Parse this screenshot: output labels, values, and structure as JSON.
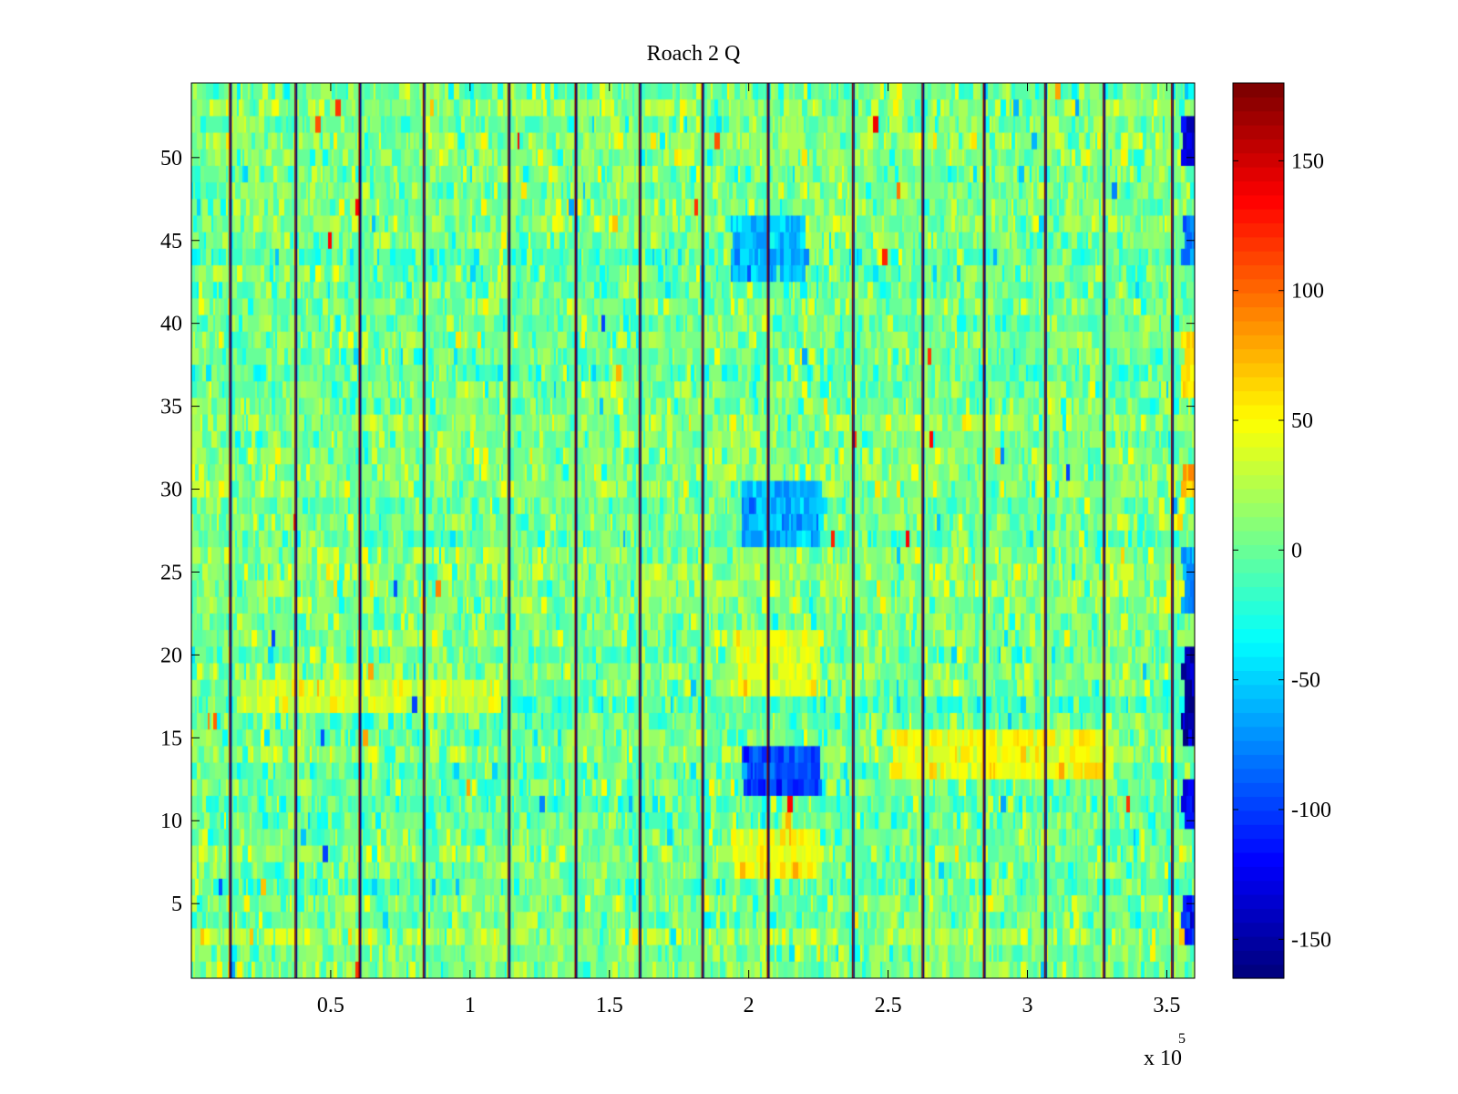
{
  "chart_data": {
    "type": "heatmap",
    "title": "Roach 2 Q",
    "xlabel": "",
    "ylabel": "",
    "x_range": [
      0,
      360000
    ],
    "y_range": [
      0.5,
      54.5
    ],
    "x_ticks": [
      50000,
      100000,
      150000,
      200000,
      250000,
      300000,
      350000
    ],
    "x_tick_labels": [
      "0.5",
      "1",
      "1.5",
      "2",
      "2.5",
      "3",
      "3.5"
    ],
    "x_exponent_label": "x 10",
    "x_exponent_power": "5",
    "y_ticks": [
      5,
      10,
      15,
      20,
      25,
      30,
      35,
      40,
      45,
      50
    ],
    "y_tick_labels": [
      "5",
      "10",
      "15",
      "20",
      "25",
      "30",
      "35",
      "40",
      "45",
      "50"
    ],
    "colormap": "jet",
    "color_range": [
      -165,
      180
    ],
    "colorbar_ticks": [
      150,
      100,
      50,
      0,
      -50,
      -100,
      -150
    ],
    "colorbar_tick_labels": [
      "150",
      "100",
      "50",
      "0",
      "-50",
      "-100",
      "-150"
    ],
    "rows": 54,
    "value_distribution": {
      "typical_mean": 5,
      "typical_spread": 18
    },
    "vertical_spikes_x": [
      14000,
      37500,
      60500,
      83500,
      114000,
      138000,
      161000,
      183500,
      207000,
      237500,
      262500,
      284500,
      306500,
      327500,
      352000
    ],
    "spike_values": [
      180,
      -165
    ],
    "notable_regions": [
      {
        "x_from": 197000,
        "x_to": 225000,
        "y_from": 12,
        "y_to": 14,
        "value": -95
      },
      {
        "x_from": 197000,
        "x_to": 225000,
        "y_from": 27,
        "y_to": 30,
        "value": -60
      },
      {
        "x_from": 193000,
        "x_to": 220000,
        "y_from": 43,
        "y_to": 46,
        "value": -55
      },
      {
        "x_from": 193000,
        "x_to": 225000,
        "y_from": 7,
        "y_to": 9,
        "value": 45
      },
      {
        "x_from": 193000,
        "x_to": 225000,
        "y_from": 18,
        "y_to": 21,
        "value": 40
      },
      {
        "x_from": 250000,
        "x_to": 330000,
        "y_from": 13,
        "y_to": 15,
        "value": 45
      },
      {
        "x_from": 16000,
        "x_to": 110000,
        "y_from": 17,
        "y_to": 18.5,
        "value": 35
      },
      {
        "x_from": 355000,
        "x_to": 360000,
        "y_from": 50,
        "y_to": 52,
        "value": -125
      },
      {
        "x_from": 355000,
        "x_to": 360000,
        "y_from": 44,
        "y_to": 46,
        "value": -85
      },
      {
        "x_from": 355000,
        "x_to": 360000,
        "y_from": 36,
        "y_to": 39,
        "value": 60
      },
      {
        "x_from": 355000,
        "x_to": 360000,
        "y_from": 29.5,
        "y_to": 31,
        "value": 70
      },
      {
        "x_from": 355000,
        "x_to": 360000,
        "y_from": 23,
        "y_to": 26,
        "value": -75
      },
      {
        "x_from": 355000,
        "x_to": 360000,
        "y_from": 14.5,
        "y_to": 20,
        "value": -150
      },
      {
        "x_from": 355000,
        "x_to": 360000,
        "y_from": 10,
        "y_to": 12,
        "value": -120
      },
      {
        "x_from": 355000,
        "x_to": 360000,
        "y_from": 3,
        "y_to": 5,
        "value": -110
      }
    ],
    "grid": false,
    "colorbar_placement": "right"
  }
}
